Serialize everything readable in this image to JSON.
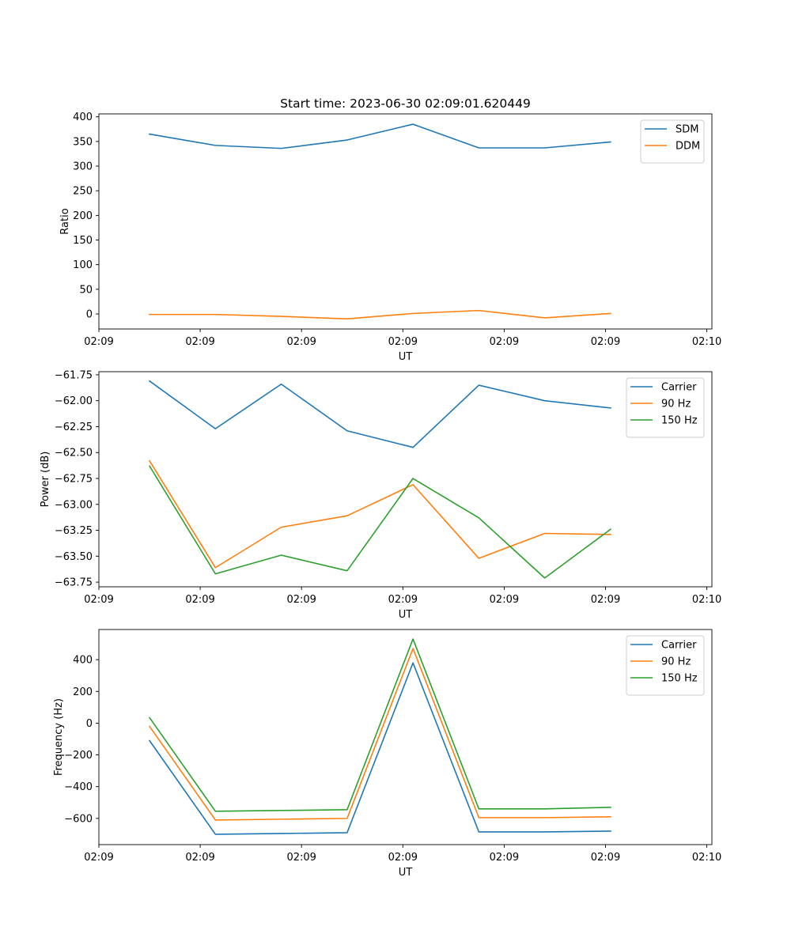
{
  "chart_data": [
    {
      "type": "line",
      "title": "Start time: 2023-06-30 02:09:01.620449",
      "xlabel": "UT",
      "ylabel": "Ratio",
      "x": [
        0.5,
        1.15,
        1.8,
        2.45,
        3.1,
        3.75,
        4.4,
        5.05
      ],
      "xlim": [
        0,
        6.05
      ],
      "xticks": [
        0,
        1,
        2,
        3,
        4,
        5,
        6
      ],
      "xtick_labels": [
        "02:09",
        "02:09",
        "02:09",
        "02:09",
        "02:09",
        "02:09",
        "02:10"
      ],
      "ylim": [
        -30.5,
        406
      ],
      "yticks": [
        0,
        50,
        100,
        150,
        200,
        250,
        300,
        350,
        400
      ],
      "ytick_labels": [
        "0",
        "50",
        "100",
        "150",
        "200",
        "250",
        "300",
        "350",
        "400"
      ],
      "legend": "top-right",
      "grid": false,
      "series": [
        {
          "name": "SDM",
          "color": "#1f77b4",
          "values": [
            365,
            342,
            336,
            353,
            385,
            337,
            337,
            349
          ]
        },
        {
          "name": "DDM",
          "color": "#ff7f0e",
          "values": [
            -1,
            -1,
            -5,
            -10,
            1,
            7,
            -8,
            1
          ]
        }
      ]
    },
    {
      "type": "line",
      "xlabel": "UT",
      "ylabel": "Power (dB)",
      "x": [
        0.5,
        1.15,
        1.8,
        2.45,
        3.1,
        3.75,
        4.4,
        5.05
      ],
      "xlim": [
        0,
        6.05
      ],
      "xticks": [
        0,
        1,
        2,
        3,
        4,
        5,
        6
      ],
      "xtick_labels": [
        "02:09",
        "02:09",
        "02:09",
        "02:09",
        "02:09",
        "02:09",
        "02:10"
      ],
      "ylim": [
        -63.795,
        -61.72
      ],
      "yticks": [
        -61.75,
        -62.0,
        -62.25,
        -62.5,
        -62.75,
        -63.0,
        -63.25,
        -63.5,
        -63.75
      ],
      "ytick_labels": [
        "−61.75",
        "−62.00",
        "−62.25",
        "−62.50",
        "−62.75",
        "−63.00",
        "−63.25",
        "−63.50",
        "−63.75"
      ],
      "legend": "top-right",
      "grid": false,
      "series": [
        {
          "name": "Carrier",
          "color": "#1f77b4",
          "values": [
            -61.81,
            -62.27,
            -61.84,
            -62.29,
            -62.45,
            -61.85,
            -62.0,
            -62.07
          ]
        },
        {
          "name": "90 Hz",
          "color": "#ff7f0e",
          "values": [
            -62.58,
            -63.61,
            -63.22,
            -63.11,
            -62.81,
            -63.52,
            -63.28,
            -63.29
          ]
        },
        {
          "name": "150 Hz",
          "color": "#2ca02c",
          "values": [
            -62.63,
            -63.67,
            -63.49,
            -63.64,
            -62.75,
            -63.13,
            -63.71,
            -63.24
          ]
        }
      ]
    },
    {
      "type": "line",
      "xlabel": "UT",
      "ylabel": "Frequency (Hz)",
      "x": [
        0.5,
        1.15,
        1.8,
        2.45,
        3.1,
        3.75,
        4.4,
        5.05
      ],
      "xlim": [
        0,
        6.05
      ],
      "xticks": [
        0,
        1,
        2,
        3,
        4,
        5,
        6
      ],
      "xtick_labels": [
        "02:09",
        "02:09",
        "02:09",
        "02:09",
        "02:09",
        "02:09",
        "02:10"
      ],
      "ylim": [
        -765,
        590
      ],
      "yticks": [
        400,
        200,
        0,
        -200,
        -400,
        -600
      ],
      "ytick_labels": [
        "400",
        "200",
        "0",
        "−200",
        "−400",
        "−600"
      ],
      "legend": "top-right",
      "grid": false,
      "series": [
        {
          "name": "Carrier",
          "color": "#1f77b4",
          "values": [
            -110,
            -700,
            -695,
            -690,
            380,
            -685,
            -685,
            -680
          ]
        },
        {
          "name": "90 Hz",
          "color": "#ff7f0e",
          "values": [
            -20,
            -610,
            -605,
            -600,
            470,
            -595,
            -595,
            -590
          ]
        },
        {
          "name": "150 Hz",
          "color": "#2ca02c",
          "values": [
            35,
            -555,
            -550,
            -545,
            530,
            -540,
            -540,
            -530
          ]
        }
      ]
    }
  ]
}
